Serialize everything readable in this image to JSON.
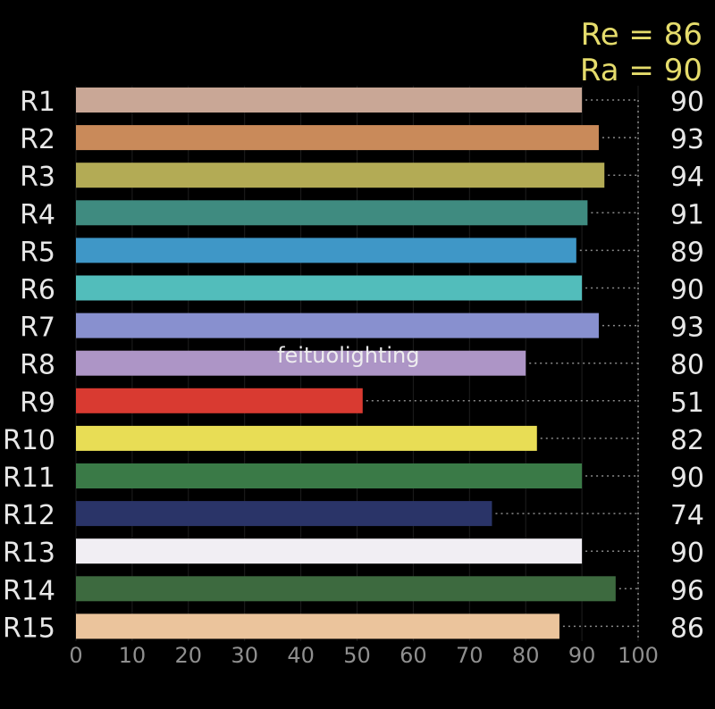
{
  "chart_data": {
    "type": "bar",
    "orientation": "horizontal",
    "summary": [
      {
        "label": "Re = 86",
        "value": 86
      },
      {
        "label": "Ra = 90",
        "value": 90
      }
    ],
    "categories": [
      "R1",
      "R2",
      "R3",
      "R4",
      "R5",
      "R6",
      "R7",
      "R8",
      "R9",
      "R10",
      "R11",
      "R12",
      "R13",
      "R14",
      "R15"
    ],
    "values": [
      90,
      93,
      94,
      91,
      89,
      90,
      93,
      80,
      51,
      82,
      90,
      74,
      90,
      96,
      86
    ],
    "value_labels": [
      "90",
      "93",
      "94",
      "91",
      "89",
      "90",
      "93",
      "80",
      "51",
      "82",
      "90",
      "74",
      "90",
      "96",
      "86"
    ],
    "colors": [
      "#c9a796",
      "#c98a5a",
      "#b3ab55",
      "#3f8b80",
      "#3f97c7",
      "#52bdbb",
      "#8890cf",
      "#ad95c6",
      "#d93a31",
      "#e8dd55",
      "#3a7a47",
      "#2a3468",
      "#f1eef3",
      "#3d6a3f",
      "#ebc49c"
    ],
    "xticks": [
      "0",
      "10",
      "20",
      "30",
      "40",
      "50",
      "60",
      "70",
      "80",
      "90",
      "100"
    ],
    "xlim": [
      0,
      100
    ],
    "grid": "dotted value guides",
    "watermark": "feituolighting"
  }
}
